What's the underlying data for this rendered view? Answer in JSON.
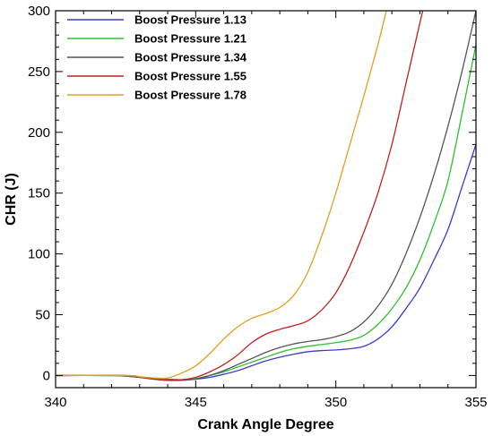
{
  "chart_data": {
    "type": "line",
    "xlabel": "Crank Angle Degree",
    "ylabel": "CHR (J)",
    "xlim": [
      340,
      355
    ],
    "ylim": [
      -10,
      300
    ],
    "xticks": [
      340,
      345,
      350,
      355
    ],
    "yticks": [
      0,
      50,
      100,
      150,
      200,
      250,
      300
    ],
    "x_minor_step": 1,
    "y_minor_step": 10,
    "grid": false,
    "legend_position": "top-left",
    "series": [
      {
        "name": "Boost Pressure 1.13",
        "color": "#3b3bc8",
        "points": [
          [
            340,
            0
          ],
          [
            342,
            0
          ],
          [
            342.5,
            -0.5
          ],
          [
            343,
            -1.5
          ],
          [
            343.5,
            -2.5
          ],
          [
            344,
            -3
          ],
          [
            344.5,
            -3.5
          ],
          [
            345,
            -3
          ],
          [
            345.5,
            -1.5
          ],
          [
            346,
            1
          ],
          [
            346.5,
            4
          ],
          [
            347,
            8
          ],
          [
            347.5,
            12
          ],
          [
            348,
            15
          ],
          [
            348.5,
            17.5
          ],
          [
            349,
            19.5
          ],
          [
            349.5,
            20.5
          ],
          [
            350,
            21
          ],
          [
            350.5,
            22
          ],
          [
            351,
            24
          ],
          [
            351.5,
            30
          ],
          [
            352,
            40
          ],
          [
            352.5,
            55
          ],
          [
            353,
            72
          ],
          [
            353.5,
            95
          ],
          [
            354,
            120
          ],
          [
            354.5,
            155
          ],
          [
            355,
            190
          ]
        ]
      },
      {
        "name": "Boost Pressure 1.21",
        "color": "#2fc02f",
        "points": [
          [
            340,
            0
          ],
          [
            342,
            0
          ],
          [
            342.5,
            -0.5
          ],
          [
            343,
            -1.5
          ],
          [
            343.5,
            -2.5
          ],
          [
            344,
            -3.5
          ],
          [
            344.5,
            -3.5
          ],
          [
            345,
            -2.5
          ],
          [
            345.5,
            0
          ],
          [
            346,
            3
          ],
          [
            346.5,
            7
          ],
          [
            347,
            11
          ],
          [
            347.5,
            15
          ],
          [
            348,
            19
          ],
          [
            348.5,
            22
          ],
          [
            349,
            24
          ],
          [
            349.5,
            25.5
          ],
          [
            350,
            27
          ],
          [
            350.5,
            29
          ],
          [
            351,
            33
          ],
          [
            351.5,
            42
          ],
          [
            352,
            55
          ],
          [
            352.5,
            72
          ],
          [
            353,
            95
          ],
          [
            353.5,
            125
          ],
          [
            354,
            160
          ],
          [
            354.5,
            215
          ],
          [
            355,
            272
          ]
        ]
      },
      {
        "name": "Boost Pressure 1.34",
        "color": "#555555",
        "points": [
          [
            340,
            0
          ],
          [
            342,
            0
          ],
          [
            342.5,
            -0.5
          ],
          [
            343,
            -1.5
          ],
          [
            343.5,
            -3
          ],
          [
            344,
            -4
          ],
          [
            344.5,
            -4
          ],
          [
            345,
            -3
          ],
          [
            345.5,
            0
          ],
          [
            346,
            4
          ],
          [
            346.5,
            9
          ],
          [
            347,
            14
          ],
          [
            347.5,
            19
          ],
          [
            348,
            23
          ],
          [
            348.5,
            26
          ],
          [
            349,
            28
          ],
          [
            349.5,
            29.5
          ],
          [
            350,
            32
          ],
          [
            350.5,
            36
          ],
          [
            351,
            44
          ],
          [
            351.5,
            57
          ],
          [
            352,
            75
          ],
          [
            352.5,
            100
          ],
          [
            353,
            130
          ],
          [
            353.5,
            165
          ],
          [
            354,
            205
          ],
          [
            354.5,
            250
          ],
          [
            355,
            300
          ]
        ]
      },
      {
        "name": "Boost Pressure 1.55",
        "color": "#c02020",
        "points": [
          [
            340,
            0
          ],
          [
            342.5,
            0
          ],
          [
            343,
            -1.5
          ],
          [
            343.5,
            -3
          ],
          [
            344,
            -4
          ],
          [
            344.5,
            -3.5
          ],
          [
            345,
            -1.5
          ],
          [
            345.5,
            3
          ],
          [
            346,
            9
          ],
          [
            346.5,
            17
          ],
          [
            347,
            27
          ],
          [
            347.5,
            34
          ],
          [
            348,
            38
          ],
          [
            348.5,
            41
          ],
          [
            349,
            45
          ],
          [
            349.5,
            54
          ],
          [
            350,
            68
          ],
          [
            350.5,
            90
          ],
          [
            351,
            118
          ],
          [
            351.5,
            150
          ],
          [
            352,
            190
          ],
          [
            352.5,
            240
          ],
          [
            353,
            290
          ],
          [
            353.1,
            300
          ]
        ]
      },
      {
        "name": "Boost Pressure 1.78",
        "color": "#e3a020",
        "points": [
          [
            340,
            0
          ],
          [
            342.5,
            0
          ],
          [
            343,
            -1
          ],
          [
            343.5,
            -2
          ],
          [
            344,
            -2
          ],
          [
            344.5,
            2
          ],
          [
            345,
            8
          ],
          [
            345.5,
            18
          ],
          [
            346,
            30
          ],
          [
            346.5,
            40
          ],
          [
            347,
            47
          ],
          [
            347.5,
            51
          ],
          [
            348,
            56
          ],
          [
            348.5,
            66
          ],
          [
            349,
            85
          ],
          [
            349.5,
            115
          ],
          [
            350,
            150
          ],
          [
            350.5,
            190
          ],
          [
            351,
            230
          ],
          [
            351.5,
            272
          ],
          [
            351.8,
            300
          ]
        ]
      }
    ]
  }
}
